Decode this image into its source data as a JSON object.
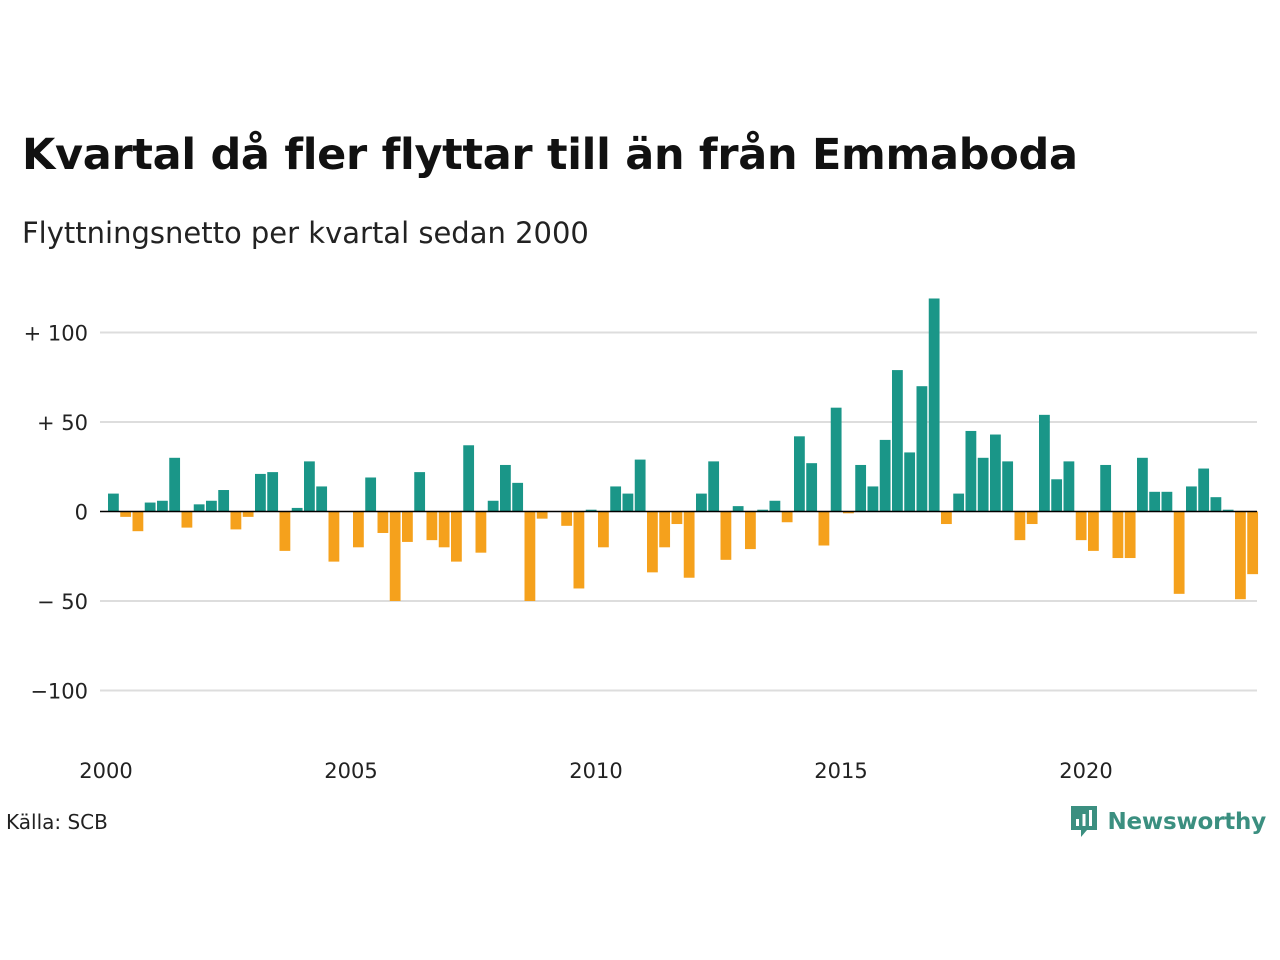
{
  "title": "Kvartal då fler flyttar till än från Emmaboda",
  "subtitle": "Flyttningsnetto per kvartal sedan 2000",
  "source": "Källa: SCB",
  "logo_text": "Newsworthy",
  "colors": {
    "positive": "#1a9688",
    "negative": "#f5a11c",
    "grid": "#dddddd",
    "zero": "#000000",
    "logo": "#3b8f80"
  },
  "chart_data": {
    "type": "bar",
    "ylim": [
      -125,
      120
    ],
    "yticks": [
      {
        "value": 100,
        "label": "+ 100"
      },
      {
        "value": 50,
        "label": "+  50"
      },
      {
        "value": 0,
        "label": "0"
      },
      {
        "value": -50,
        "label": "− 50"
      },
      {
        "value": -100,
        "label": "−100"
      }
    ],
    "xticks": [
      {
        "label": "2000",
        "quarter_index": 0
      },
      {
        "label": "2005",
        "quarter_index": 20
      },
      {
        "label": "2010",
        "quarter_index": 40
      },
      {
        "label": "2015",
        "quarter_index": 60
      },
      {
        "label": "2020",
        "quarter_index": 80
      }
    ],
    "start": "2000 Q1",
    "values": [
      10,
      -3,
      -11,
      5,
      6,
      30,
      -9,
      4,
      6,
      12,
      -10,
      -3,
      21,
      22,
      -22,
      2,
      28,
      14,
      -28,
      0,
      -20,
      19,
      -12,
      -50,
      -17,
      22,
      -16,
      -20,
      -28,
      37,
      -23,
      6,
      26,
      16,
      -50,
      -4,
      0,
      -8,
      -43,
      1,
      -20,
      14,
      10,
      29,
      -34,
      -20,
      -7,
      -37,
      10,
      28,
      -27,
      3,
      -21,
      1,
      6,
      -6,
      42,
      27,
      -19,
      58,
      -1,
      26,
      14,
      40,
      79,
      33,
      70,
      119,
      -7,
      10,
      45,
      30,
      43,
      28,
      -16,
      -7,
      54,
      18,
      28,
      -16,
      -22,
      26,
      -26,
      -26,
      30,
      11,
      11,
      -46,
      14,
      24,
      8,
      1,
      -49,
      -35
    ]
  }
}
